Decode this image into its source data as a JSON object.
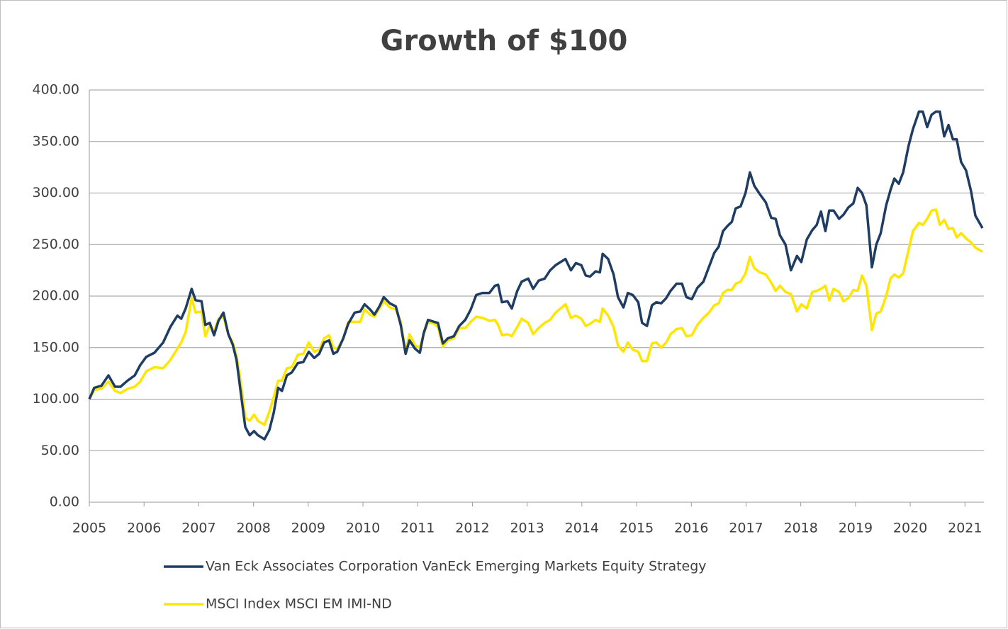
{
  "chart_data": {
    "type": "line",
    "title": "Growth of $100",
    "x": [
      2005.0,
      2005.09,
      2005.22,
      2005.35,
      2005.47,
      2005.57,
      2005.7,
      2005.83,
      2005.93,
      2006.04,
      2006.19,
      2006.35,
      2006.48,
      2006.61,
      2006.68,
      2006.76,
      2006.87,
      2006.94,
      2007.05,
      2007.12,
      2007.2,
      2007.28,
      2007.36,
      2007.45,
      2007.54,
      2007.62,
      2007.69,
      2007.77,
      2007.85,
      2007.93,
      2008.01,
      2008.08,
      2008.2,
      2008.29,
      2008.37,
      2008.45,
      2008.52,
      2008.61,
      2008.7,
      2008.81,
      2008.91,
      2009.01,
      2009.11,
      2009.2,
      2009.29,
      2009.38,
      2009.46,
      2009.53,
      2009.64,
      2009.73,
      2009.85,
      2009.95,
      2010.03,
      2010.13,
      2010.21,
      2010.3,
      2010.38,
      2010.49,
      2010.6,
      2010.69,
      2010.78,
      2010.85,
      2010.95,
      2011.04,
      2011.11,
      2011.19,
      2011.3,
      2011.37,
      2011.46,
      2011.55,
      2011.66,
      2011.76,
      2011.87,
      2011.97,
      2012.07,
      2012.18,
      2012.31,
      2012.41,
      2012.47,
      2012.54,
      2012.64,
      2012.72,
      2012.82,
      2012.9,
      2013.02,
      2013.11,
      2013.21,
      2013.32,
      2013.42,
      2013.52,
      2013.7,
      2013.8,
      2013.89,
      2013.99,
      2014.07,
      2014.15,
      2014.25,
      2014.33,
      2014.38,
      2014.48,
      2014.58,
      2014.66,
      2014.76,
      2014.84,
      2014.93,
      2015.03,
      2015.1,
      2015.19,
      2015.28,
      2015.36,
      2015.45,
      2015.54,
      2015.62,
      2015.73,
      2015.83,
      2015.91,
      2016.01,
      2016.11,
      2016.22,
      2016.32,
      2016.42,
      2016.5,
      2016.58,
      2016.66,
      2016.74,
      2016.81,
      2016.9,
      2016.99,
      2017.07,
      2017.15,
      2017.25,
      2017.36,
      2017.46,
      2017.54,
      2017.62,
      2017.72,
      2017.82,
      2017.93,
      2018.01,
      2018.11,
      2018.21,
      2018.29,
      2018.37,
      2018.45,
      2018.52,
      2018.6,
      2018.7,
      2018.78,
      2018.87,
      2018.96,
      2019.04,
      2019.12,
      2019.2,
      2019.3,
      2019.38,
      2019.46,
      2019.56,
      2019.64,
      2019.71,
      2019.79,
      2019.87,
      2019.97,
      2020.05,
      2020.16,
      2020.23,
      2020.31,
      2020.39,
      2020.47,
      2020.54,
      2020.62,
      2020.7,
      2020.78,
      2020.85,
      2020.93,
      2021.02,
      2021.11,
      2021.19,
      2021.32
    ],
    "series": [
      {
        "name": "Van Eck Associates Corporation VanEck Emerging Markets Equity Strategy",
        "color": "#1f3d63",
        "values": [
          100,
          111,
          113,
          123,
          112,
          112,
          118,
          123,
          133,
          141,
          145,
          155,
          170,
          181,
          178,
          188,
          207,
          196,
          195,
          172,
          174,
          162,
          176,
          184,
          163,
          153,
          138,
          105,
          73,
          65,
          69,
          65,
          61,
          70,
          87,
          111,
          108,
          123,
          126,
          135,
          136,
          146,
          140,
          144,
          155,
          157,
          144,
          146,
          159,
          173,
          184,
          185,
          192,
          187,
          182,
          190,
          199,
          193,
          190,
          172,
          144,
          157,
          149,
          145,
          164,
          177,
          175,
          174,
          154,
          159,
          161,
          171,
          177,
          187,
          201,
          203,
          203,
          210,
          211,
          194,
          195,
          188,
          205,
          214,
          217,
          207,
          215,
          217,
          225,
          230,
          236,
          225,
          232,
          230,
          220,
          219,
          224,
          223,
          241,
          236,
          221,
          199,
          189,
          203,
          201,
          194,
          174,
          171,
          191,
          194,
          193,
          198,
          205,
          212,
          212,
          199,
          197,
          208,
          214,
          228,
          242,
          248,
          263,
          268,
          272,
          285,
          287,
          300,
          320,
          307,
          299,
          291,
          276,
          275,
          259,
          250,
          225,
          239,
          233,
          255,
          264,
          269,
          282,
          263,
          283,
          283,
          275,
          279,
          286,
          290,
          305,
          300,
          288,
          228,
          250,
          261,
          288,
          303,
          314,
          309,
          320,
          346,
          362,
          379,
          379,
          364,
          376,
          379,
          379,
          355,
          366,
          352,
          352,
          330,
          322,
          302,
          278,
          266
        ]
      },
      {
        "name": "MSCI Index MSCI EM IMI-ND",
        "color": "#ffe600",
        "values": [
          100,
          109,
          110,
          117,
          108,
          106,
          110,
          112,
          117,
          127,
          131,
          130,
          138,
          149,
          155,
          165,
          198,
          184,
          185,
          161,
          172,
          165,
          178,
          180,
          163,
          155,
          142,
          115,
          82,
          79,
          85,
          79,
          75,
          88,
          102,
          118,
          118,
          130,
          131,
          143,
          144,
          155,
          146,
          148,
          159,
          162,
          150,
          149,
          158,
          175,
          175,
          175,
          187,
          182,
          180,
          188,
          195,
          189,
          187,
          175,
          146,
          163,
          152,
          150,
          163,
          175,
          173,
          170,
          151,
          157,
          159,
          169,
          169,
          175,
          180,
          179,
          176,
          177,
          172,
          162,
          163,
          161,
          170,
          178,
          174,
          163,
          169,
          174,
          177,
          184,
          192,
          179,
          181,
          178,
          171,
          173,
          177,
          175,
          188,
          181,
          170,
          152,
          146,
          155,
          148,
          146,
          137,
          137,
          154,
          155,
          150,
          155,
          163,
          168,
          169,
          161,
          162,
          172,
          179,
          184,
          191,
          193,
          203,
          206,
          206,
          212,
          214,
          222,
          238,
          227,
          223,
          221,
          213,
          205,
          210,
          204,
          202,
          185,
          192,
          188,
          204,
          205,
          207,
          210,
          196,
          207,
          204,
          195,
          198,
          206,
          205,
          220,
          210,
          167,
          183,
          185,
          200,
          217,
          221,
          218,
          222,
          245,
          263,
          271,
          269,
          275,
          283,
          284,
          269,
          274,
          265,
          266,
          257,
          261,
          256,
          252,
          247,
          243
        ]
      }
    ],
    "xlim": [
      2005,
      2021.32
    ],
    "xticks": [
      2005,
      2006,
      2007,
      2008,
      2009,
      2010,
      2011,
      2012,
      2013,
      2014,
      2015,
      2016,
      2017,
      2018,
      2019,
      2020,
      2021
    ],
    "ylim": [
      0,
      400
    ],
    "yticks": [
      {
        "value": 0,
        "label": "0.00"
      },
      {
        "value": 50,
        "label": "50.00"
      },
      {
        "value": 100,
        "label": "100.00"
      },
      {
        "value": 150,
        "label": "150.00"
      },
      {
        "value": 200,
        "label": "200.00"
      },
      {
        "value": 250,
        "label": "250.00"
      },
      {
        "value": 300,
        "label": "300.00"
      },
      {
        "value": 350,
        "label": "350.00"
      },
      {
        "value": 400,
        "label": "400.00"
      }
    ],
    "grid": true,
    "legend": "bottom"
  }
}
